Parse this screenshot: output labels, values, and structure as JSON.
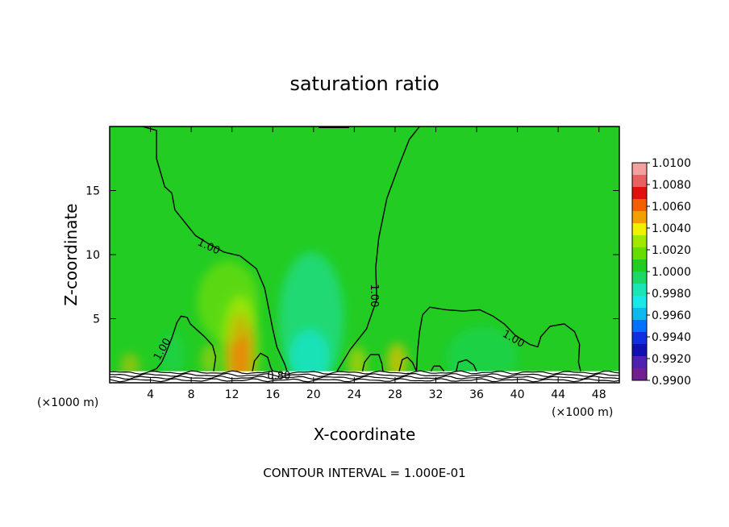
{
  "chart_data": {
    "type": "heatmap",
    "title": "saturation ratio",
    "xlabel": "X-coordinate",
    "ylabel": "Z-coordinate",
    "x_unit_left": "(×1000 m)",
    "x_unit_right": "(×1000 m)",
    "xlim": [
      0,
      50
    ],
    "ylim": [
      0,
      20
    ],
    "x_ticks": [
      4,
      8,
      12,
      16,
      20,
      24,
      28,
      32,
      36,
      40,
      44,
      48
    ],
    "y_ticks": [
      5,
      10,
      15
    ],
    "footnote": "CONTOUR INTERVAL = 1.000E-01",
    "background_value": 1.0,
    "colorbar": {
      "labels": [
        "1.0100",
        "1.0080",
        "1.0060",
        "1.0040",
        "1.0020",
        "1.0000",
        "0.9980",
        "0.9960",
        "0.9940",
        "0.9920",
        "0.9900"
      ],
      "colors": [
        "#f3a0a0",
        "#e86060",
        "#e01010",
        "#f06000",
        "#f0a000",
        "#f0f000",
        "#a0e800",
        "#66dd00",
        "#22cc22",
        "#1cd866",
        "#1ce4b4",
        "#18e8e8",
        "#10b8f0",
        "#0070ff",
        "#1030e0",
        "#1010b0",
        "#5020b0",
        "#702090"
      ]
    },
    "contour_labels": [
      {
        "text": "1.00",
        "x": 9.7,
        "y": 10.6,
        "angle": 25
      },
      {
        "text": "1.00",
        "x": 5.2,
        "y": 2.6,
        "angle": -60
      },
      {
        "text": "1.00",
        "x": 25.9,
        "y": 6.8,
        "angle": 90
      },
      {
        "text": "1.00",
        "x": 39.6,
        "y": 3.4,
        "angle": 30
      },
      {
        "text": "0.80",
        "x": 16.6,
        "y": 0.5,
        "angle": 0
      }
    ],
    "contours": [
      {
        "name": "c1",
        "points": [
          [
            3.2,
            20
          ],
          [
            4.6,
            19.7
          ],
          [
            4.6,
            17.5
          ],
          [
            5.4,
            15.3
          ],
          [
            6.1,
            14.8
          ],
          [
            6.4,
            13.5
          ],
          [
            7.3,
            12.6
          ],
          [
            8.4,
            11.5
          ],
          [
            9.6,
            10.9
          ],
          [
            11.2,
            10.2
          ],
          [
            12.8,
            9.9
          ],
          [
            14.4,
            8.9
          ],
          [
            15.2,
            7.4
          ],
          [
            15.6,
            5.8
          ],
          [
            16.0,
            4.2
          ],
          [
            16.4,
            2.8
          ],
          [
            17.2,
            1.4
          ],
          [
            17.4,
            0.9
          ]
        ]
      },
      {
        "name": "c2",
        "points": [
          [
            10.2,
            0.9
          ],
          [
            10.4,
            2.0
          ],
          [
            10.1,
            2.9
          ],
          [
            9.3,
            3.6
          ],
          [
            8.6,
            4.1
          ],
          [
            7.9,
            4.6
          ],
          [
            7.6,
            5.1
          ],
          [
            7.0,
            5.2
          ],
          [
            6.6,
            4.7
          ],
          [
            6.1,
            3.5
          ],
          [
            5.6,
            2.5
          ],
          [
            5.1,
            1.6
          ],
          [
            4.6,
            1.1
          ],
          [
            4.0,
            0.9
          ]
        ]
      },
      {
        "name": "c3",
        "points": [
          [
            30.4,
            20
          ],
          [
            29.4,
            19.0
          ],
          [
            28.4,
            17.0
          ],
          [
            27.2,
            14.4
          ],
          [
            26.4,
            11.3
          ],
          [
            26.1,
            9.0
          ],
          [
            26.2,
            6.5
          ],
          [
            25.2,
            4.2
          ],
          [
            23.6,
            2.6
          ],
          [
            22.7,
            1.4
          ],
          [
            22.3,
            0.9
          ]
        ]
      },
      {
        "name": "c4",
        "points": [
          [
            30.1,
            0.9
          ],
          [
            30.2,
            2.4
          ],
          [
            30.4,
            4.0
          ],
          [
            30.7,
            5.3
          ],
          [
            31.4,
            5.9
          ],
          [
            33.0,
            5.7
          ],
          [
            34.7,
            5.6
          ],
          [
            36.3,
            5.7
          ],
          [
            37.6,
            5.2
          ],
          [
            38.7,
            4.6
          ],
          [
            39.8,
            3.7
          ],
          [
            41.2,
            3.0
          ],
          [
            42.0,
            2.8
          ],
          [
            42.3,
            3.6
          ],
          [
            43.2,
            4.4
          ],
          [
            44.6,
            4.6
          ],
          [
            45.6,
            4.0
          ],
          [
            46.1,
            3.0
          ],
          [
            46.0,
            1.6
          ],
          [
            46.2,
            0.9
          ]
        ]
      },
      {
        "name": "c5",
        "points": [
          [
            24.8,
            0.9
          ],
          [
            25.0,
            1.6
          ],
          [
            25.6,
            2.2
          ],
          [
            26.4,
            2.2
          ],
          [
            26.7,
            1.5
          ],
          [
            26.8,
            0.9
          ]
        ]
      },
      {
        "name": "c6",
        "points": [
          [
            28.4,
            0.9
          ],
          [
            28.7,
            1.8
          ],
          [
            29.2,
            2.0
          ],
          [
            29.7,
            1.6
          ],
          [
            30.1,
            0.9
          ]
        ]
      },
      {
        "name": "c7",
        "points": [
          [
            14.0,
            0.9
          ],
          [
            14.2,
            1.7
          ],
          [
            14.8,
            2.3
          ],
          [
            15.5,
            2.0
          ],
          [
            15.8,
            1.2
          ],
          [
            16.0,
            0.9
          ]
        ]
      },
      {
        "name": "c8",
        "points": [
          [
            31.5,
            0.9
          ],
          [
            31.8,
            1.3
          ],
          [
            32.4,
            1.3
          ],
          [
            32.8,
            0.9
          ]
        ]
      },
      {
        "name": "c9",
        "points": [
          [
            34.0,
            0.9
          ],
          [
            34.2,
            1.6
          ],
          [
            35.0,
            1.8
          ],
          [
            35.7,
            1.4
          ],
          [
            36.0,
            0.9
          ]
        ]
      }
    ],
    "hotspots": [
      {
        "name": "peak-12",
        "x": 12.8,
        "y": 2.2,
        "rx": 1.1,
        "ry": 3.2,
        "color": "#e01010",
        "opacity": 0.95
      },
      {
        "name": "warm-12",
        "x": 12.8,
        "y": 2.6,
        "rx": 1.8,
        "ry": 4.2,
        "color": "#f0f000",
        "opacity": 0.55
      },
      {
        "name": "warm-28",
        "x": 28.2,
        "y": 1.6,
        "rx": 1.0,
        "ry": 1.5,
        "color": "#f0c000",
        "opacity": 0.7
      },
      {
        "name": "warm-24",
        "x": 24.3,
        "y": 1.5,
        "rx": 0.9,
        "ry": 1.3,
        "color": "#f0d000",
        "opacity": 0.55
      },
      {
        "name": "warm-2",
        "x": 2.0,
        "y": 1.3,
        "rx": 0.9,
        "ry": 1.0,
        "color": "#f0c000",
        "opacity": 0.5
      },
      {
        "name": "warm-10",
        "x": 9.8,
        "y": 1.8,
        "rx": 0.8,
        "ry": 1.2,
        "color": "#f0d000",
        "opacity": 0.45
      },
      {
        "name": "cool-20",
        "x": 19.8,
        "y": 5.0,
        "rx": 3.2,
        "ry": 5.2,
        "color": "#1ce4b4",
        "opacity": 0.55
      },
      {
        "name": "cool-20b",
        "x": 19.6,
        "y": 2.0,
        "rx": 2.0,
        "ry": 2.2,
        "color": "#18e8e8",
        "opacity": 0.6
      },
      {
        "name": "cool-36",
        "x": 36.5,
        "y": 2.0,
        "rx": 3.5,
        "ry": 2.4,
        "color": "#1cd866",
        "opacity": 0.5
      },
      {
        "name": "cool-6",
        "x": 6.2,
        "y": 2.2,
        "rx": 1.2,
        "ry": 1.8,
        "color": "#1cd866",
        "opacity": 0.45
      },
      {
        "name": "yellow-14",
        "x": 11.6,
        "y": 6.3,
        "rx": 3.0,
        "ry": 3.2,
        "color": "#a0e800",
        "opacity": 0.45
      }
    ]
  }
}
